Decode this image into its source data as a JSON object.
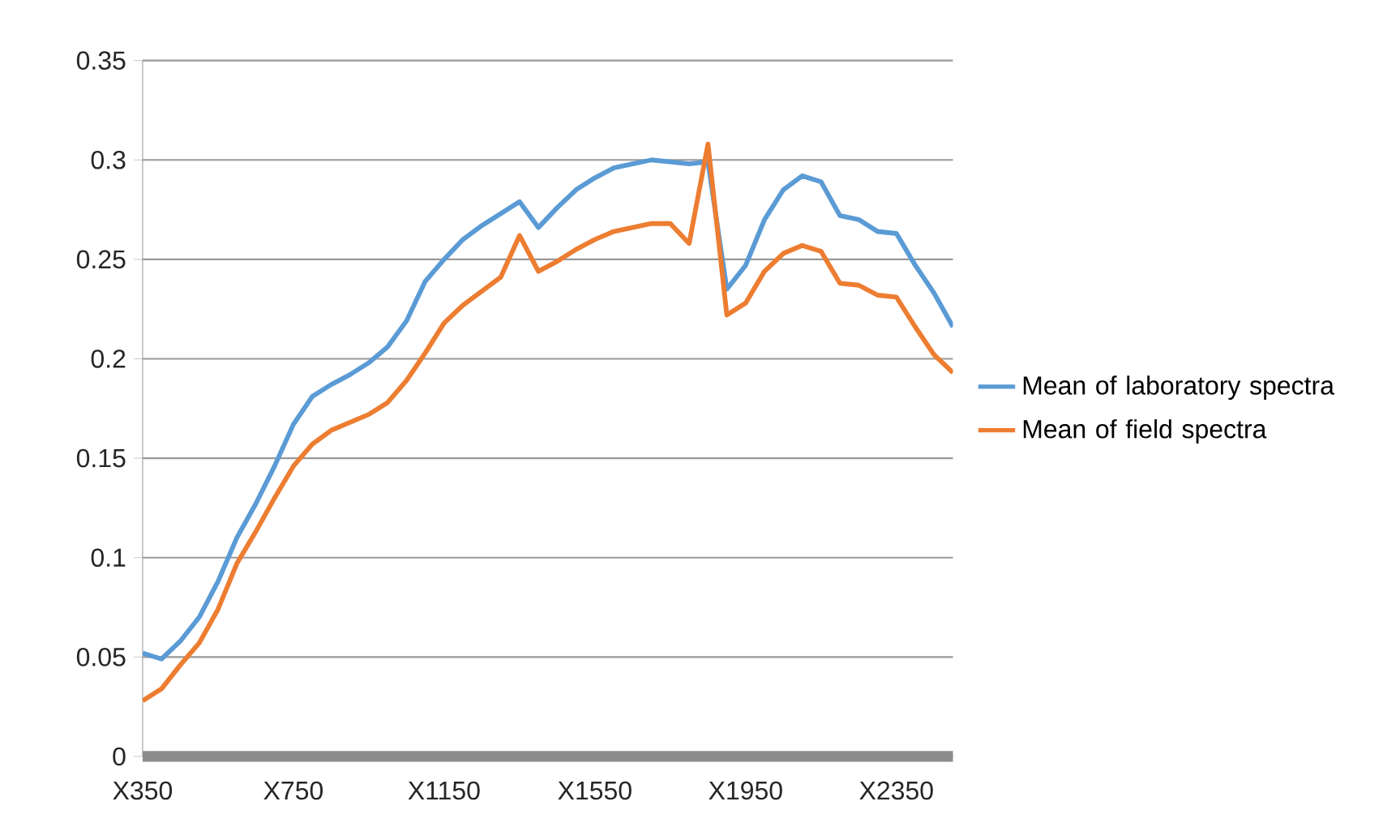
{
  "chart_data": {
    "type": "line",
    "legend": "right",
    "grid": "y",
    "marker": "none",
    "line_style": "solid",
    "ylim": [
      0,
      0.35
    ],
    "yticks": [
      0,
      0.05,
      0.1,
      0.15,
      0.2,
      0.25,
      0.3,
      0.35
    ],
    "categories": [
      "X350",
      null,
      null,
      null,
      null,
      null,
      null,
      null,
      "X750",
      null,
      null,
      null,
      null,
      null,
      null,
      null,
      "X1150",
      null,
      null,
      null,
      null,
      null,
      null,
      null,
      "X1550",
      null,
      null,
      null,
      null,
      null,
      null,
      null,
      "X1950",
      null,
      null,
      null,
      null,
      null,
      null,
      null,
      "X2350",
      null,
      null,
      null
    ],
    "series": [
      {
        "name": "Mean of laboratory spectra",
        "color": "#5b9bd5",
        "values": [
          0.052,
          0.049,
          0.058,
          0.07,
          0.088,
          0.11,
          0.127,
          0.146,
          0.167,
          0.181,
          0.187,
          0.192,
          0.198,
          0.206,
          0.219,
          0.239,
          0.25,
          0.26,
          0.267,
          0.273,
          0.279,
          0.266,
          0.276,
          0.285,
          0.291,
          0.296,
          0.298,
          0.3,
          0.299,
          0.298,
          0.299,
          0.235,
          0.247,
          0.27,
          0.285,
          0.292,
          0.289,
          0.272,
          0.27,
          0.264,
          0.263,
          0.247,
          0.233,
          0.216
        ]
      },
      {
        "name": "Mean of field spectra",
        "color": "#ed7d31",
        "values": [
          0.028,
          0.034,
          0.046,
          0.057,
          0.074,
          0.097,
          0.113,
          0.13,
          0.146,
          0.157,
          0.164,
          0.168,
          0.172,
          0.178,
          0.189,
          0.203,
          0.218,
          0.227,
          0.234,
          0.241,
          0.262,
          0.244,
          0.249,
          0.255,
          0.26,
          0.264,
          0.266,
          0.268,
          0.268,
          0.258,
          0.308,
          0.222,
          0.228,
          0.244,
          0.253,
          0.257,
          0.254,
          0.238,
          0.237,
          0.232,
          0.231,
          0.216,
          0.202,
          0.193
        ]
      }
    ]
  }
}
